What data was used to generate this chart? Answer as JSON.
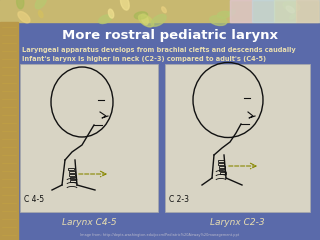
{
  "title": "More rostral pediatric larynx",
  "subtitle_line1": "Laryngeal apparatus develops from brachial clefts and descends caudally",
  "subtitle_line2": "Infant's larynx is higher in neck (C2-3) compared to adult's (C4-5)",
  "label_left_top": "C 4-5",
  "label_right_top": "C 2-3",
  "label_left_bottom": "Larynx C4-5",
  "label_right_bottom": "Larynx C2-3",
  "url_text": "Image from: http://depts.washington.edu/pccm/Pediatric%20Airway%20management.ppt",
  "bg_color": "#5a6aaa",
  "title_color": "#ffffff",
  "subtitle_color": "#e8ddb0",
  "label_color": "#e8ddb0",
  "url_color": "#bbbbcc",
  "header_top_color": "#c8b870",
  "header_top_color2": "#d4c888",
  "left_strip_color": "#b89848",
  "left_strip_color2": "#c8a840",
  "fig_bg_color": "#d8d4c4",
  "fig_border_color": "#aaaaaa",
  "sketch_color": "#111111",
  "c45_label_color": "#111111",
  "c23_label_color": "#111111"
}
